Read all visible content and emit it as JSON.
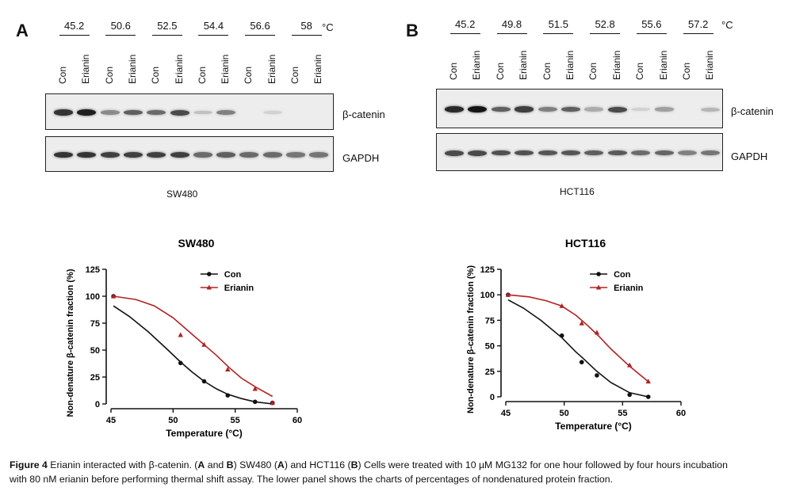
{
  "panels": [
    {
      "letter": "A",
      "temps": [
        "45.2",
        "50.6",
        "52.5",
        "54.4",
        "56.6",
        "58"
      ],
      "unit": "°C",
      "lanes": [
        "Con",
        "Erianin",
        "Con",
        "Erianin",
        "Con",
        "Erianin",
        "Con",
        "Erianin",
        "Con",
        "Erianin",
        "Con",
        "Erianin"
      ],
      "target_label": "β-catenin",
      "control_label": "GAPDH",
      "cell_line": "SW480"
    },
    {
      "letter": "B",
      "temps": [
        "45.2",
        "49.8",
        "51.5",
        "52.8",
        "55.6",
        "57.2"
      ],
      "unit": "°C",
      "lanes": [
        "Con",
        "Erianin",
        "Con",
        "Erianin",
        "Con",
        "Erianin",
        "Con",
        "Erianin",
        "Con",
        "Erianin",
        "Con",
        "Erianin"
      ],
      "target_label": "β-catenin",
      "control_label": "GAPDH",
      "cell_line": "HCT116"
    }
  ],
  "band_intensity": {
    "A_target": [
      0.85,
      0.95,
      0.45,
      0.65,
      0.6,
      0.75,
      0.2,
      0.5,
      0.0,
      0.12,
      0.0,
      0.0
    ],
    "A_control": [
      0.85,
      0.85,
      0.8,
      0.8,
      0.8,
      0.8,
      0.6,
      0.65,
      0.6,
      0.6,
      0.55,
      0.55
    ],
    "B_target": [
      0.9,
      1.0,
      0.65,
      0.8,
      0.5,
      0.65,
      0.3,
      0.75,
      0.12,
      0.35,
      0.0,
      0.25
    ],
    "B_control": [
      0.75,
      0.75,
      0.72,
      0.72,
      0.7,
      0.7,
      0.65,
      0.68,
      0.6,
      0.62,
      0.5,
      0.55
    ]
  },
  "chart_data": [
    {
      "type": "scatter",
      "title": "SW480",
      "xlabel": "Temperature (°C)",
      "ylabel": "Non-denature β-catenin fraction (%)",
      "xlim": [
        45,
        60
      ],
      "ylim": [
        0,
        125
      ],
      "xticks": [
        45,
        50,
        55,
        60
      ],
      "yticks": [
        0,
        25,
        50,
        75,
        100,
        125
      ],
      "legend_position": "top-right",
      "series": [
        {
          "name": "Con",
          "marker": "circle",
          "color": "#111111",
          "x": [
            45.2,
            50.6,
            52.5,
            54.4,
            56.6,
            58
          ],
          "y": [
            100,
            38,
            21,
            8,
            2,
            1
          ],
          "fit_x": [
            45.2,
            46.5,
            48,
            49.5,
            50.6,
            51.5,
            52.5,
            53.5,
            54.4,
            55.5,
            56.6,
            58
          ],
          "fit_y": [
            91,
            81,
            67,
            51,
            39,
            30,
            21,
            14,
            9,
            5,
            2,
            0
          ]
        },
        {
          "name": "Erianin",
          "marker": "triangle",
          "color": "#b22222",
          "x": [
            45.2,
            50.6,
            52.5,
            54.4,
            56.6,
            58
          ],
          "y": [
            100,
            64,
            55,
            32,
            14,
            1
          ],
          "fit_x": [
            45.2,
            47,
            48.5,
            50,
            51.5,
            52.5,
            53.5,
            54.5,
            55.5,
            56.6,
            58
          ],
          "fit_y": [
            100,
            97,
            91,
            80,
            65,
            55,
            45,
            34,
            24,
            16,
            7
          ]
        }
      ]
    },
    {
      "type": "scatter",
      "title": "HCT116",
      "xlabel": "Temperature (°C)",
      "ylabel": "Non-denature β-catenin fraction (%)",
      "xlim": [
        45,
        60
      ],
      "ylim": [
        0,
        125
      ],
      "xticks": [
        45,
        50,
        55,
        60
      ],
      "yticks": [
        0,
        25,
        50,
        75,
        100,
        125
      ],
      "legend_position": "top-right",
      "series": [
        {
          "name": "Con",
          "marker": "circle",
          "color": "#111111",
          "x": [
            45.2,
            49.8,
            51.5,
            52.8,
            55.6,
            57.2
          ],
          "y": [
            100,
            60,
            34,
            21,
            2,
            0
          ],
          "fit_x": [
            45.2,
            46.5,
            48,
            49.8,
            51,
            51.5,
            52.8,
            54,
            55.6,
            57.2
          ],
          "fit_y": [
            95,
            87,
            75,
            58,
            44,
            39,
            25,
            14,
            4,
            0
          ]
        },
        {
          "name": "Erianin",
          "marker": "triangle",
          "color": "#b22222",
          "x": [
            45.2,
            49.8,
            51.5,
            52.8,
            55.6,
            57.2
          ],
          "y": [
            100,
            89,
            72,
            63,
            31,
            15
          ],
          "fit_x": [
            45.2,
            47,
            48.5,
            49.8,
            51,
            52,
            53,
            54,
            55.6,
            57.2
          ],
          "fit_y": [
            100,
            98,
            94,
            89,
            80,
            70,
            59,
            47,
            30,
            15
          ]
        }
      ]
    }
  ],
  "caption": {
    "fig_label": "Figure 4",
    "text_1": " Erianin interacted with β-catenin. (",
    "bold_A1": "A",
    "text_2": " and ",
    "bold_B1": "B",
    "text_3": ") SW480 (",
    "bold_A2": "A",
    "text_4": ") and HCT116 (",
    "bold_B2": "B",
    "text_5": ") Cells were treated with 10 µM MG132 for one hour followed by four hours incubation",
    "line2": "with 80 nM erianin before performing thermal shift assay. The lower panel shows the charts of percentages of nondenatured protein fraction."
  }
}
